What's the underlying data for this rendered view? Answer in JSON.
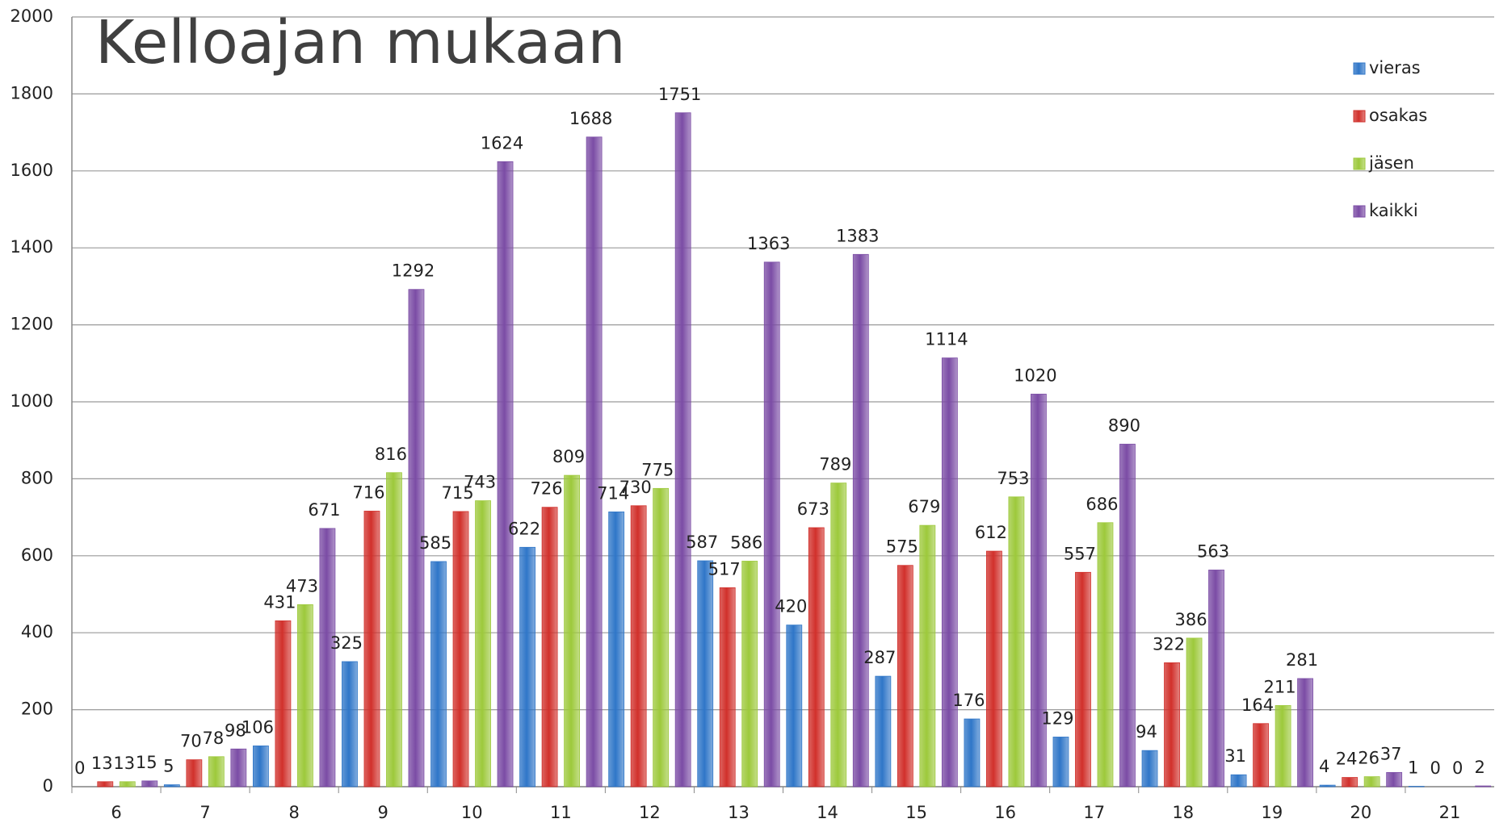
{
  "chart_data": {
    "type": "bar",
    "title": "Kelloajan mukaan",
    "categories": [
      "6",
      "7",
      "8",
      "9",
      "10",
      "11",
      "12",
      "13",
      "14",
      "15",
      "16",
      "17",
      "18",
      "19",
      "20",
      "21"
    ],
    "series": [
      {
        "name": "vieras",
        "color": "#2f76c8",
        "values": [
          0,
          5,
          106,
          325,
          585,
          622,
          714,
          587,
          420,
          287,
          176,
          129,
          94,
          31,
          4,
          1
        ]
      },
      {
        "name": "osakas",
        "color": "#d1302b",
        "values": [
          13,
          70,
          431,
          716,
          715,
          726,
          730,
          517,
          673,
          575,
          612,
          557,
          322,
          164,
          24,
          0
        ]
      },
      {
        "name": "jäsen",
        "color": "#9dc93b",
        "values": [
          13,
          78,
          473,
          816,
          743,
          809,
          775,
          586,
          789,
          679,
          753,
          686,
          386,
          211,
          26,
          0
        ]
      },
      {
        "name": "kaikki",
        "color": "#7b4ca5",
        "values": [
          15,
          98,
          671,
          1292,
          1624,
          1688,
          1751,
          1363,
          1383,
          1114,
          1020,
          890,
          563,
          281,
          37,
          2
        ]
      }
    ],
    "ylim": [
      0,
      2000
    ],
    "yticks": [
      0,
      200,
      400,
      600,
      800,
      1000,
      1200,
      1400,
      1600,
      1800,
      2000
    ],
    "grid": true,
    "legend": "right"
  }
}
